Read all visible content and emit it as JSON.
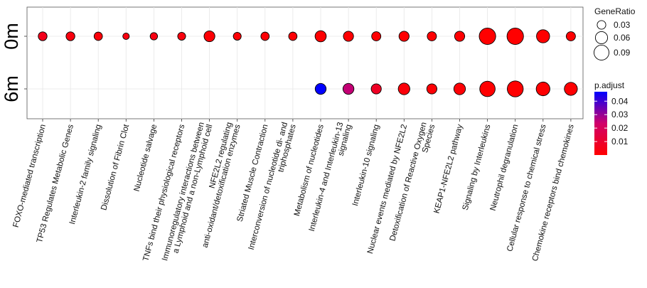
{
  "chart_data": {
    "type": "scatter",
    "categories": [
      "FOXO-mediated transcription",
      "TP53 Regulates Metabolic Genes",
      "Interleukin-2 family signaling",
      "Dissolution of Fibrin Clot",
      "Nucleotide salvage",
      "TNFs bind their physiological receptors",
      "Immunoregulatory interactions between a Lymphoid and a non-Lymphoid cell",
      "NFE2L2 regulating anti-oxidant/detoxification enzymes",
      "Striated Muscle Contraction",
      "Interconversion of nucleotide di- and triphosphates",
      "Metabolism of nucleotides",
      "Interleukin-4 and Interleukin-13 signaling",
      "Interleukin-10 signaling",
      "Nuclear events mediated by NFE2L2",
      "Detoxification of Reactive Oxygen Species",
      "KEAP1-NFE2L2 pathway",
      "Signaling by Interleukins",
      "Neutrophil degranulation",
      "Cellular response to chemical stress",
      "Chemokine receptors bind chemokines"
    ],
    "x_label_lines": [
      [
        "FOXO-mediated transcription"
      ],
      [
        "TP53 Regulates Metabolic Genes"
      ],
      [
        "Interleukin-2 family signaling"
      ],
      [
        "Dissolution of Fibrin Clot"
      ],
      [
        "Nucleotide salvage"
      ],
      [
        "TNFs bind their physiological receptors"
      ],
      [
        "Immunoregulatory interactions between",
        "a Lymphoid and a non-Lymphoid cell"
      ],
      [
        "NFE2L2 regulating",
        "anti-oxidant/detoxification enzymes"
      ],
      [
        "Striated Muscle Contraction"
      ],
      [
        "Interconversion of nucleotide di- and",
        "triphosphates"
      ],
      [
        "Metabolism of nucleotides"
      ],
      [
        "Interleukin-4 and Interleukin-13",
        "signaling"
      ],
      [
        "Interleukin-10 signaling"
      ],
      [
        "Nuclear events mediated by NFE2L2"
      ],
      [
        "Detoxification of Reactive Oxygen",
        "Species"
      ],
      [
        "KEAP1-NFE2L2 pathway"
      ],
      [
        "Signaling by Interleukins"
      ],
      [
        "Neutrophil degranulation"
      ],
      [
        "Cellular response to chemical stress"
      ],
      [
        "Chemokine receptors bind chemokines"
      ]
    ],
    "y_categories": [
      "0m",
      "6m"
    ],
    "series": [
      {
        "name": "0m",
        "gene_ratio": [
          0.031,
          0.031,
          0.028,
          0.017,
          0.022,
          0.025,
          0.047,
          0.025,
          0.028,
          0.028,
          0.05,
          0.041,
          0.034,
          0.041,
          0.034,
          0.041,
          0.109,
          0.109,
          0.069,
          0.034
        ],
        "p_adjust": [
          0.006,
          0.003,
          0.002,
          0.003,
          0.004,
          0.003,
          0.001,
          0.001,
          0.001,
          0.001,
          0.0005,
          0.0005,
          0.0005,
          0.0005,
          0.0005,
          0.0005,
          0.0001,
          0.0001,
          0.0001,
          0.0005
        ]
      },
      {
        "name": "6m",
        "gene_ratio": [
          null,
          null,
          null,
          null,
          null,
          null,
          null,
          null,
          null,
          null,
          0.048,
          0.048,
          0.041,
          0.054,
          0.041,
          0.054,
          0.095,
          0.102,
          0.075,
          0.068
        ],
        "p_adjust": [
          null,
          null,
          null,
          null,
          null,
          null,
          null,
          null,
          null,
          null,
          0.047,
          0.025,
          0.008,
          0.002,
          0.001,
          0.001,
          0.0002,
          0.0002,
          0.0003,
          0.0005
        ]
      }
    ],
    "size_legend": {
      "title": "GeneRatio",
      "values": [
        0.03,
        0.06,
        0.09
      ],
      "labels": [
        "0.03",
        "0.06",
        "0.09"
      ]
    },
    "color_legend": {
      "title": "p.adjust",
      "range": [
        0.0,
        0.047
      ],
      "ticks": [
        0.04,
        0.03,
        0.02,
        0.01
      ],
      "labels": [
        "0.04",
        "0.03",
        "0.02",
        "0.01"
      ],
      "colors": {
        "low": "#ff0000",
        "high": "#0000ff"
      }
    },
    "grid": true,
    "legend_position": "right"
  }
}
